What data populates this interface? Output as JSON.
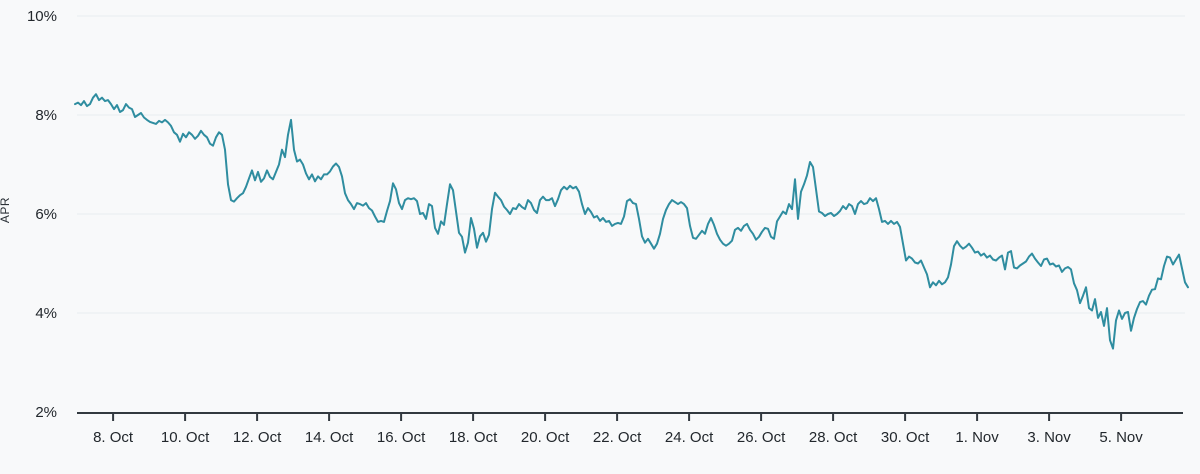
{
  "chart_data": {
    "type": "line",
    "title": "",
    "ylabel": "APR",
    "unit": "%",
    "ylim": [
      2,
      10
    ],
    "grid": true,
    "legend": false,
    "y_ticks": {
      "values": [
        2,
        4,
        6,
        8,
        10
      ],
      "labels": [
        "2%",
        "4%",
        "6%",
        "8%",
        "10%"
      ]
    },
    "x_ticks": {
      "labels": [
        "8. Oct",
        "10. Oct",
        "12. Oct",
        "14. Oct",
        "16. Oct",
        "18. Oct",
        "20. Oct",
        "22. Oct",
        "24. Oct",
        "26. Oct",
        "28. Oct",
        "30. Oct",
        "1. Nov",
        "3. Nov",
        "5. Nov"
      ],
      "first_index": 12.7,
      "index_step": 24
    },
    "series": [
      {
        "name": "APR",
        "color": "#2f8da0",
        "values": [
          8.22,
          8.25,
          8.2,
          8.28,
          8.18,
          8.22,
          8.35,
          8.42,
          8.3,
          8.35,
          8.28,
          8.3,
          8.22,
          8.12,
          8.2,
          8.06,
          8.1,
          8.22,
          8.15,
          8.12,
          7.96,
          8.0,
          8.04,
          7.95,
          7.9,
          7.86,
          7.84,
          7.82,
          7.88,
          7.85,
          7.9,
          7.85,
          7.78,
          7.65,
          7.6,
          7.46,
          7.62,
          7.55,
          7.65,
          7.6,
          7.52,
          7.58,
          7.68,
          7.6,
          7.55,
          7.42,
          7.38,
          7.55,
          7.65,
          7.6,
          7.3,
          6.6,
          6.28,
          6.25,
          6.32,
          6.38,
          6.42,
          6.55,
          6.72,
          6.88,
          6.68,
          6.85,
          6.65,
          6.72,
          6.88,
          6.75,
          6.7,
          6.85,
          7.0,
          7.3,
          7.15,
          7.6,
          7.9,
          7.3,
          7.06,
          7.1,
          7.0,
          6.82,
          6.7,
          6.8,
          6.66,
          6.76,
          6.7,
          6.8,
          6.8,
          6.86,
          6.96,
          7.02,
          6.95,
          6.76,
          6.42,
          6.28,
          6.2,
          6.1,
          6.22,
          6.2,
          6.17,
          6.22,
          6.12,
          6.07,
          5.95,
          5.84,
          5.86,
          5.84,
          6.06,
          6.26,
          6.62,
          6.5,
          6.22,
          6.1,
          6.28,
          6.32,
          6.3,
          6.32,
          6.26,
          6.0,
          6.02,
          5.9,
          6.2,
          6.16,
          5.72,
          5.6,
          5.85,
          5.78,
          6.2,
          6.6,
          6.48,
          6.05,
          5.62,
          5.54,
          5.22,
          5.42,
          5.92,
          5.7,
          5.32,
          5.55,
          5.62,
          5.44,
          5.58,
          6.1,
          6.43,
          6.35,
          6.28,
          6.15,
          6.08,
          6.0,
          6.12,
          6.1,
          6.2,
          6.14,
          6.1,
          6.28,
          6.22,
          6.08,
          6.02,
          6.28,
          6.35,
          6.28,
          6.28,
          6.32,
          6.16,
          6.3,
          6.48,
          6.55,
          6.5,
          6.57,
          6.52,
          6.55,
          6.45,
          6.2,
          6.0,
          6.12,
          6.04,
          5.93,
          5.96,
          5.86,
          5.92,
          5.84,
          5.86,
          5.76,
          5.8,
          5.82,
          5.8,
          5.95,
          6.26,
          6.3,
          6.22,
          6.2,
          5.9,
          5.55,
          5.42,
          5.5,
          5.4,
          5.3,
          5.4,
          5.6,
          5.9,
          6.08,
          6.2,
          6.28,
          6.24,
          6.2,
          6.24,
          6.2,
          6.12,
          5.76,
          5.52,
          5.5,
          5.58,
          5.66,
          5.6,
          5.8,
          5.92,
          5.78,
          5.6,
          5.48,
          5.4,
          5.36,
          5.4,
          5.46,
          5.68,
          5.72,
          5.66,
          5.76,
          5.8,
          5.68,
          5.6,
          5.48,
          5.54,
          5.64,
          5.72,
          5.7,
          5.54,
          5.5,
          5.85,
          5.95,
          6.05,
          6.0,
          6.2,
          6.1,
          6.7,
          5.9,
          6.45,
          6.6,
          6.78,
          7.05,
          6.95,
          6.5,
          6.05,
          6.02,
          5.96,
          6.0,
          6.02,
          5.96,
          6.0,
          6.06,
          6.16,
          6.1,
          6.2,
          6.16,
          6.0,
          6.2,
          6.26,
          6.2,
          6.22,
          6.32,
          6.26,
          6.32,
          6.1,
          5.84,
          5.86,
          5.8,
          5.86,
          5.8,
          5.84,
          5.74,
          5.4,
          5.06,
          5.14,
          5.1,
          5.02,
          5.0,
          5.06,
          4.92,
          4.78,
          4.52,
          4.62,
          4.56,
          4.65,
          4.58,
          4.62,
          4.72,
          4.98,
          5.35,
          5.45,
          5.36,
          5.3,
          5.34,
          5.4,
          5.32,
          5.22,
          5.24,
          5.16,
          5.2,
          5.12,
          5.16,
          5.08,
          5.06,
          5.12,
          5.16,
          4.88,
          5.22,
          5.25,
          4.92,
          4.9,
          4.96,
          5.0,
          5.04,
          5.14,
          5.2,
          5.1,
          5.02,
          4.95,
          5.08,
          5.1,
          4.98,
          5.0,
          4.94,
          4.96,
          4.83,
          4.9,
          4.93,
          4.88,
          4.6,
          4.46,
          4.2,
          4.35,
          4.52,
          4.1,
          4.05,
          4.28,
          3.9,
          4.02,
          3.74,
          4.1,
          3.45,
          3.28,
          3.85,
          4.05,
          3.88,
          4.0,
          4.02,
          3.64,
          3.9,
          4.08,
          4.22,
          4.24,
          4.17,
          4.35,
          4.47,
          4.48,
          4.7,
          4.68,
          4.95,
          5.14,
          5.12,
          4.98,
          5.08,
          5.18,
          4.9,
          4.62,
          4.52
        ]
      }
    ],
    "colors": {
      "line": "#2f8da0",
      "grid": "#e9edf0",
      "axis": "#32393f",
      "text": "#22272c",
      "background": "#f8f9fa"
    }
  }
}
